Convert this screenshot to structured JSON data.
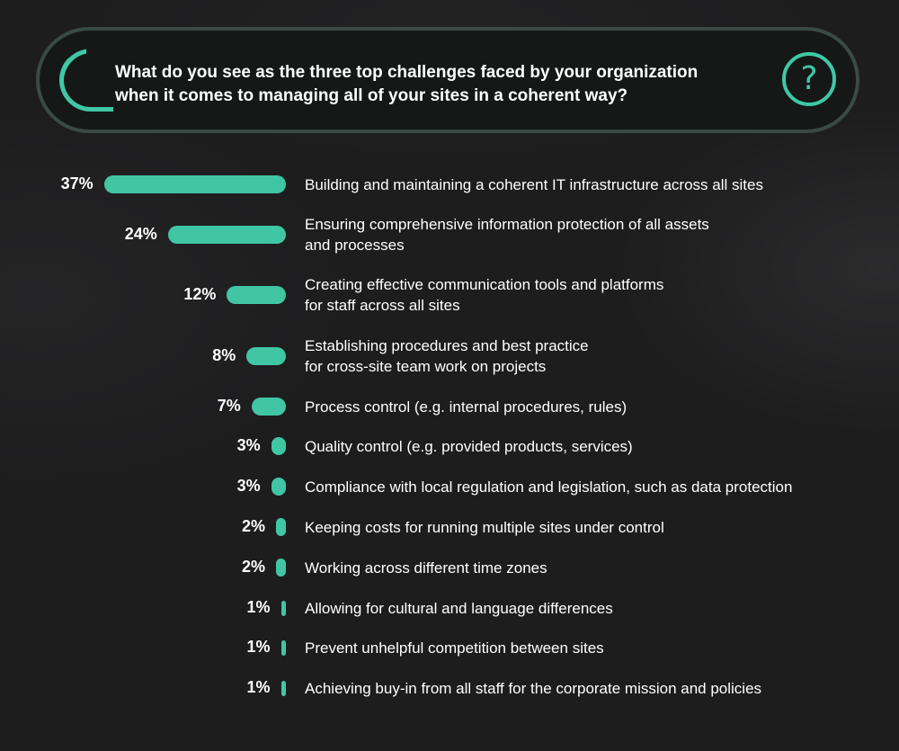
{
  "question": {
    "line1": "What do you see as the three top challenges faced by your organization",
    "line2": "when it comes to managing all of your sites in a coherent way?",
    "help_glyph": "?"
  },
  "colors": {
    "accent": "#41c6a4",
    "background": "#1d1d1e",
    "banner_border": "#3a4a45"
  },
  "chart_data": {
    "type": "bar",
    "orientation": "horizontal",
    "unit": "%",
    "categories": [
      "Building and maintaining a coherent IT infrastructure across all sites",
      "Ensuring comprehensive information protection of all assets and processes",
      "Creating effective communication tools and platforms for staff across all sites",
      "Establishing procedures and best practice for cross-site team work on projects",
      "Process control (e.g. internal procedures, rules)",
      "Quality control (e.g. provided products, services)",
      "Compliance with local regulation and legislation, such as data protection",
      "Keeping costs for running multiple sites under control",
      "Working across different time zones",
      "Allowing for cultural and language differences",
      "Prevent unhelpful competition between sites",
      "Achieving buy-in from all staff for the corporate mission and policies"
    ],
    "label_lines": [
      [
        "Building and maintaining a coherent IT infrastructure across all sites"
      ],
      [
        "Ensuring comprehensive information protection of all assets",
        "and processes"
      ],
      [
        "Creating effective communication tools and platforms",
        "for staff across all sites"
      ],
      [
        "Establishing procedures and best practice",
        "for cross-site team work on projects"
      ],
      [
        "Process control (e.g. internal procedures, rules)"
      ],
      [
        "Quality control (e.g. provided products, services)"
      ],
      [
        "Compliance with local regulation and legislation, such as data protection"
      ],
      [
        "Keeping costs for running multiple sites under control"
      ],
      [
        "Working across different time zones"
      ],
      [
        "Allowing for cultural and language differences"
      ],
      [
        "Prevent unhelpful competition between sites"
      ],
      [
        "Achieving buy-in from all staff for the corporate mission and policies"
      ]
    ],
    "values": [
      37,
      24,
      12,
      8,
      7,
      3,
      3,
      2,
      2,
      1,
      1,
      1
    ],
    "value_labels": [
      "37%",
      "24%",
      "12%",
      "8%",
      "7%",
      "3%",
      "3%",
      "2%",
      "2%",
      "1%",
      "1%",
      "1%"
    ],
    "legend": "none",
    "grid": false
  }
}
